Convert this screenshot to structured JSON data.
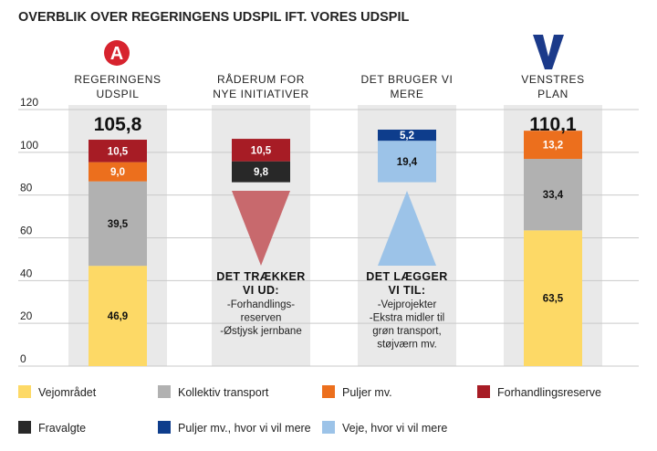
{
  "title": "OVERBLIK OVER REGERINGENS UDSPIL IFT. VORES UDSPIL",
  "logos": {
    "left": "A",
    "right": "V"
  },
  "columns": [
    {
      "head1": "REGERINGENS",
      "head2": "UDSPIL",
      "total": "105,8"
    },
    {
      "head1": "RÅDERUM FOR",
      "head2": "NYE INITIATIVER",
      "total": ""
    },
    {
      "head1": "DET BRUGER VI",
      "head2": "MERE",
      "total": ""
    },
    {
      "head1": "VENSTRES",
      "head2": "PLAN",
      "total": "110,1"
    }
  ],
  "annotations": [
    {
      "head": [
        "DET TRÆKKER",
        "VI UD:"
      ],
      "lines": [
        "-Forhandlings-",
        "reserven",
        "-Østjysk jernbane"
      ]
    },
    {
      "head": [
        "DET LÆGGER",
        "VI TIL:"
      ],
      "lines": [
        "-Vejprojekter",
        "-Ekstra midler til",
        "grøn transport,",
        "støjværn mv."
      ]
    }
  ],
  "colors": {
    "vejomraadet": "#fdd966",
    "kollektiv": "#b1b1b1",
    "puljer": "#ec6f1d",
    "forhandlingsreserve": "#a71c25",
    "fravalgte": "#282828",
    "puljer_mere": "#0e3d8c",
    "veje_mere": "#9cc3e8",
    "panel": "#e9e9e9",
    "red_triangle": "#c8696d",
    "blue_triangle": "#9cc3e8",
    "logo_red": "#d7232e",
    "logo_blue": "#1b3a8a"
  },
  "legend": [
    {
      "key": "vejomraadet",
      "label": "Vejområdet"
    },
    {
      "key": "kollektiv",
      "label": "Kollektiv transport"
    },
    {
      "key": "puljer",
      "label": "Puljer mv."
    },
    {
      "key": "forhandlingsreserve",
      "label": "Forhandlingsreserve"
    },
    {
      "key": "fravalgte",
      "label": "Fravalgte"
    },
    {
      "key": "puljer_mere",
      "label": "Puljer mv., hvor vi vil mere"
    },
    {
      "key": "veje_mere",
      "label": "Veje, hvor vi vil mere"
    }
  ],
  "chart_data": {
    "type": "bar",
    "title": "OVERBLIK OVER REGERINGENS UDSPIL IFT. VORES UDSPIL",
    "ylim": [
      0,
      120
    ],
    "yticks": [
      0,
      20,
      40,
      60,
      80,
      100,
      120
    ],
    "grid": true,
    "legend_position": "bottom",
    "bars": [
      {
        "column": 0,
        "segments": [
          {
            "key": "vejomraadet",
            "start": 0,
            "value": 46.9,
            "label": "46,9"
          },
          {
            "key": "kollektiv",
            "start": 46.9,
            "value": 39.5,
            "label": "39,5"
          },
          {
            "key": "puljer",
            "start": 86.4,
            "value": 9.0,
            "label": "9,0"
          },
          {
            "key": "forhandlingsreserve",
            "start": 95.4,
            "value": 10.5,
            "label": "10,5"
          }
        ]
      },
      {
        "column": 1,
        "segments": [
          {
            "key": "fravalgte",
            "start": 86.0,
            "value": 9.8,
            "label": "9,8"
          },
          {
            "key": "forhandlingsreserve",
            "start": 95.8,
            "value": 10.5,
            "label": "10,5"
          }
        ]
      },
      {
        "column": 2,
        "segments": [
          {
            "key": "veje_mere",
            "start": 86.0,
            "value": 19.4,
            "label": "19,4"
          },
          {
            "key": "puljer_mere",
            "start": 105.4,
            "value": 5.2,
            "label": "5,2"
          }
        ]
      },
      {
        "column": 3,
        "segments": [
          {
            "key": "vejomraadet",
            "start": 0,
            "value": 63.5,
            "label": "63,5"
          },
          {
            "key": "kollektiv",
            "start": 63.5,
            "value": 33.4,
            "label": "33,4"
          },
          {
            "key": "puljer",
            "start": 96.9,
            "value": 13.2,
            "label": "13,2"
          }
        ]
      }
    ]
  }
}
